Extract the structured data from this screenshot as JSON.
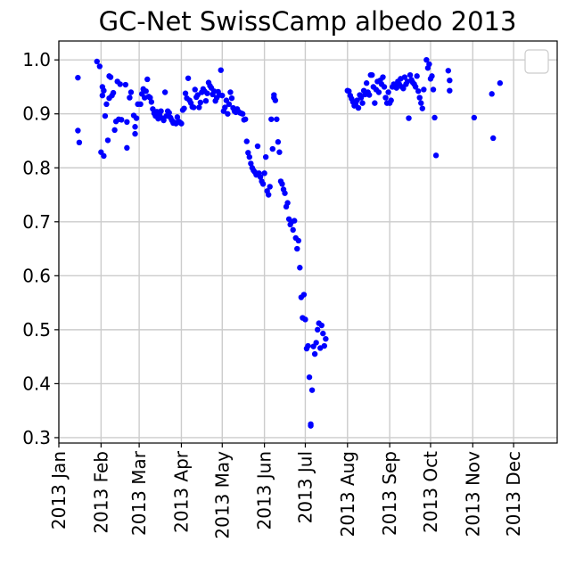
{
  "chart_data": {
    "type": "scatter",
    "title": "GC-Net SwissCamp albedo 2013",
    "xlabel": "",
    "ylabel": "",
    "x_axis": "date",
    "xlim": [
      "2013-01-01",
      "2014-01-02"
    ],
    "ylim": [
      0.29,
      1.035
    ],
    "grid": true,
    "legend": "top-right, empty",
    "marker_color": "#0000ff",
    "y_ticks": [
      {
        "value": 0.3,
        "label": "0.3"
      },
      {
        "value": 0.4,
        "label": "0.4"
      },
      {
        "value": 0.5,
        "label": "0.5"
      },
      {
        "value": 0.6,
        "label": "0.6"
      },
      {
        "value": 0.7,
        "label": "0.7"
      },
      {
        "value": 0.8,
        "label": "0.8"
      },
      {
        "value": 0.9,
        "label": "0.9"
      },
      {
        "value": 1.0,
        "label": "1.0"
      }
    ],
    "x_ticks": [
      {
        "date": "2013-01-01",
        "label": "2013 Jan"
      },
      {
        "date": "2013-02-01",
        "label": "2013 Feb"
      },
      {
        "date": "2013-03-01",
        "label": "2013 Mar"
      },
      {
        "date": "2013-04-01",
        "label": "2013 Apr"
      },
      {
        "date": "2013-05-01",
        "label": "2013 May"
      },
      {
        "date": "2013-06-01",
        "label": "2013 Jun"
      },
      {
        "date": "2013-07-01",
        "label": "2013 Jul"
      },
      {
        "date": "2013-08-01",
        "label": "2013 Aug"
      },
      {
        "date": "2013-09-01",
        "label": "2013 Sep"
      },
      {
        "date": "2013-10-01",
        "label": "2013 Oct"
      },
      {
        "date": "2013-11-01",
        "label": "2013 Nov"
      },
      {
        "date": "2013-12-01",
        "label": "2013 Dec"
      }
    ],
    "points": [
      [
        "2013-01-15",
        0.967
      ],
      [
        "2013-01-15",
        0.869
      ],
      [
        "2013-01-16",
        0.847
      ],
      [
        "2013-01-29",
        0.997
      ],
      [
        "2013-01-31",
        0.988
      ],
      [
        "2013-02-01",
        0.829
      ],
      [
        "2013-02-02",
        0.95
      ],
      [
        "2013-02-02",
        0.934
      ],
      [
        "2013-02-03",
        0.943
      ],
      [
        "2013-02-03",
        0.822
      ],
      [
        "2013-02-04",
        0.896
      ],
      [
        "2013-02-05",
        0.918
      ],
      [
        "2013-02-06",
        0.851
      ],
      [
        "2013-02-07",
        0.929
      ],
      [
        "2013-02-07",
        0.97
      ],
      [
        "2013-02-08",
        0.968
      ],
      [
        "2013-02-09",
        0.934
      ],
      [
        "2013-02-10",
        0.939
      ],
      [
        "2013-02-11",
        0.87
      ],
      [
        "2013-02-12",
        0.886
      ],
      [
        "2013-02-13",
        0.96
      ],
      [
        "2013-02-14",
        0.89
      ],
      [
        "2013-02-15",
        0.955
      ],
      [
        "2013-02-16",
        0.889
      ],
      [
        "2013-02-19",
        0.954
      ],
      [
        "2013-02-20",
        0.885
      ],
      [
        "2013-02-20",
        0.837
      ],
      [
        "2013-02-22",
        0.93
      ],
      [
        "2013-02-23",
        0.94
      ],
      [
        "2013-02-25",
        0.897
      ],
      [
        "2013-02-26",
        0.876
      ],
      [
        "2013-02-26",
        0.863
      ],
      [
        "2013-02-27",
        0.892
      ],
      [
        "2013-02-28",
        0.918
      ],
      [
        "2013-03-02",
        0.918
      ],
      [
        "2013-03-03",
        0.937
      ],
      [
        "2013-03-04",
        0.946
      ],
      [
        "2013-03-05",
        0.93
      ],
      [
        "2013-03-06",
        0.942
      ],
      [
        "2013-03-07",
        0.964
      ],
      [
        "2013-03-08",
        0.932
      ],
      [
        "2013-03-09",
        0.93
      ],
      [
        "2013-03-10",
        0.922
      ],
      [
        "2013-03-11",
        0.909
      ],
      [
        "2013-03-12",
        0.901
      ],
      [
        "2013-03-13",
        0.896
      ],
      [
        "2013-03-14",
        0.904
      ],
      [
        "2013-03-15",
        0.891
      ],
      [
        "2013-03-16",
        0.898
      ],
      [
        "2013-03-17",
        0.905
      ],
      [
        "2013-03-18",
        0.892
      ],
      [
        "2013-03-19",
        0.888
      ],
      [
        "2013-03-20",
        0.94
      ],
      [
        "2013-03-21",
        0.896
      ],
      [
        "2013-03-22",
        0.905
      ],
      [
        "2013-03-23",
        0.902
      ],
      [
        "2013-03-24",
        0.893
      ],
      [
        "2013-03-25",
        0.888
      ],
      [
        "2013-03-26",
        0.883
      ],
      [
        "2013-03-27",
        0.884
      ],
      [
        "2013-03-28",
        0.882
      ],
      [
        "2013-03-29",
        0.894
      ],
      [
        "2013-03-30",
        0.886
      ],
      [
        "2013-03-31",
        0.884
      ],
      [
        "2013-04-01",
        0.882
      ],
      [
        "2013-04-02",
        0.907
      ],
      [
        "2013-04-03",
        0.91
      ],
      [
        "2013-04-04",
        0.938
      ],
      [
        "2013-04-05",
        0.929
      ],
      [
        "2013-04-06",
        0.966
      ],
      [
        "2013-04-07",
        0.925
      ],
      [
        "2013-04-08",
        0.92
      ],
      [
        "2013-04-09",
        0.913
      ],
      [
        "2013-04-10",
        0.912
      ],
      [
        "2013-04-11",
        0.945
      ],
      [
        "2013-04-12",
        0.931
      ],
      [
        "2013-04-13",
        0.935
      ],
      [
        "2013-04-14",
        0.912
      ],
      [
        "2013-04-15",
        0.921
      ],
      [
        "2013-04-16",
        0.94
      ],
      [
        "2013-04-17",
        0.946
      ],
      [
        "2013-04-18",
        0.942
      ],
      [
        "2013-04-19",
        0.924
      ],
      [
        "2013-04-20",
        0.938
      ],
      [
        "2013-04-21",
        0.958
      ],
      [
        "2013-04-22",
        0.952
      ],
      [
        "2013-04-23",
        0.948
      ],
      [
        "2013-04-24",
        0.936
      ],
      [
        "2013-04-25",
        0.942
      ],
      [
        "2013-04-26",
        0.924
      ],
      [
        "2013-04-27",
        0.93
      ],
      [
        "2013-04-28",
        0.941
      ],
      [
        "2013-04-29",
        0.935
      ],
      [
        "2013-04-30",
        0.981
      ],
      [
        "2013-05-01",
        0.934
      ],
      [
        "2013-05-02",
        0.905
      ],
      [
        "2013-05-03",
        0.912
      ],
      [
        "2013-05-04",
        0.925
      ],
      [
        "2013-05-05",
        0.9
      ],
      [
        "2013-05-06",
        0.918
      ],
      [
        "2013-05-07",
        0.94
      ],
      [
        "2013-05-08",
        0.929
      ],
      [
        "2013-05-09",
        0.911
      ],
      [
        "2013-05-10",
        0.905
      ],
      [
        "2013-05-11",
        0.903
      ],
      [
        "2013-05-12",
        0.909
      ],
      [
        "2013-05-13",
        0.904
      ],
      [
        "2013-05-14",
        0.902
      ],
      [
        "2013-05-15",
        0.901
      ],
      [
        "2013-05-16",
        0.9
      ],
      [
        "2013-05-17",
        0.889
      ],
      [
        "2013-05-18",
        0.89
      ],
      [
        "2013-05-19",
        0.849
      ],
      [
        "2013-05-20",
        0.828
      ],
      [
        "2013-05-21",
        0.82
      ],
      [
        "2013-05-22",
        0.808
      ],
      [
        "2013-05-23",
        0.8
      ],
      [
        "2013-05-24",
        0.795
      ],
      [
        "2013-05-25",
        0.792
      ],
      [
        "2013-05-26",
        0.787
      ],
      [
        "2013-05-27",
        0.84
      ],
      [
        "2013-05-28",
        0.79
      ],
      [
        "2013-05-29",
        0.783
      ],
      [
        "2013-05-30",
        0.775
      ],
      [
        "2013-05-31",
        0.77
      ],
      [
        "2013-06-01",
        0.79
      ],
      [
        "2013-06-02",
        0.82
      ],
      [
        "2013-06-03",
        0.757
      ],
      [
        "2013-06-04",
        0.75
      ],
      [
        "2013-06-05",
        0.765
      ],
      [
        "2013-06-06",
        0.89
      ],
      [
        "2013-06-07",
        0.835
      ],
      [
        "2013-06-08",
        0.93
      ],
      [
        "2013-06-08",
        0.935
      ],
      [
        "2013-06-09",
        0.925
      ],
      [
        "2013-06-10",
        0.89
      ],
      [
        "2013-06-11",
        0.848
      ],
      [
        "2013-06-12",
        0.829
      ],
      [
        "2013-06-13",
        0.775
      ],
      [
        "2013-06-14",
        0.77
      ],
      [
        "2013-06-15",
        0.76
      ],
      [
        "2013-06-16",
        0.753
      ],
      [
        "2013-06-17",
        0.728
      ],
      [
        "2013-06-18",
        0.735
      ],
      [
        "2013-06-19",
        0.705
      ],
      [
        "2013-06-20",
        0.695
      ],
      [
        "2013-06-21",
        0.7
      ],
      [
        "2013-06-22",
        0.685
      ],
      [
        "2013-06-23",
        0.702
      ],
      [
        "2013-06-24",
        0.67
      ],
      [
        "2013-06-25",
        0.65
      ],
      [
        "2013-06-26",
        0.665
      ],
      [
        "2013-06-27",
        0.615
      ],
      [
        "2013-06-28",
        0.56
      ],
      [
        "2013-06-29",
        0.522
      ],
      [
        "2013-06-30",
        0.565
      ],
      [
        "2013-07-01",
        0.519
      ],
      [
        "2013-07-02",
        0.465
      ],
      [
        "2013-07-03",
        0.47
      ],
      [
        "2013-07-04",
        0.412
      ],
      [
        "2013-07-05",
        0.325
      ],
      [
        "2013-07-05",
        0.322
      ],
      [
        "2013-07-06",
        0.388
      ],
      [
        "2013-07-07",
        0.469
      ],
      [
        "2013-07-08",
        0.455
      ],
      [
        "2013-07-09",
        0.476
      ],
      [
        "2013-07-10",
        0.5
      ],
      [
        "2013-07-11",
        0.512
      ],
      [
        "2013-07-12",
        0.466
      ],
      [
        "2013-07-13",
        0.508
      ],
      [
        "2013-07-14",
        0.493
      ],
      [
        "2013-07-15",
        0.47
      ],
      [
        "2013-07-16",
        0.483
      ],
      [
        "2013-08-01",
        0.943
      ],
      [
        "2013-08-02",
        0.942
      ],
      [
        "2013-08-03",
        0.934
      ],
      [
        "2013-08-04",
        0.928
      ],
      [
        "2013-08-05",
        0.922
      ],
      [
        "2013-08-06",
        0.915
      ],
      [
        "2013-08-07",
        0.918
      ],
      [
        "2013-08-08",
        0.925
      ],
      [
        "2013-08-09",
        0.911
      ],
      [
        "2013-08-10",
        0.935
      ],
      [
        "2013-08-11",
        0.93
      ],
      [
        "2013-08-12",
        0.92
      ],
      [
        "2013-08-13",
        0.943
      ],
      [
        "2013-08-14",
        0.936
      ],
      [
        "2013-08-15",
        0.957
      ],
      [
        "2013-08-16",
        0.94
      ],
      [
        "2013-08-17",
        0.935
      ],
      [
        "2013-08-18",
        0.972
      ],
      [
        "2013-08-19",
        0.972
      ],
      [
        "2013-08-20",
        0.95
      ],
      [
        "2013-08-21",
        0.92
      ],
      [
        "2013-08-22",
        0.945
      ],
      [
        "2013-08-23",
        0.96
      ],
      [
        "2013-08-24",
        0.94
      ],
      [
        "2013-08-25",
        0.962
      ],
      [
        "2013-08-26",
        0.955
      ],
      [
        "2013-08-27",
        0.968
      ],
      [
        "2013-08-28",
        0.95
      ],
      [
        "2013-08-29",
        0.93
      ],
      [
        "2013-08-30",
        0.92
      ],
      [
        "2013-08-31",
        0.94
      ],
      [
        "2013-09-01",
        0.92
      ],
      [
        "2013-09-02",
        0.925
      ],
      [
        "2013-09-03",
        0.95
      ],
      [
        "2013-09-04",
        0.955
      ],
      [
        "2013-09-05",
        0.953
      ],
      [
        "2013-09-06",
        0.948
      ],
      [
        "2013-09-07",
        0.96
      ],
      [
        "2013-09-08",
        0.955
      ],
      [
        "2013-09-09",
        0.965
      ],
      [
        "2013-09-10",
        0.95
      ],
      [
        "2013-09-11",
        0.947
      ],
      [
        "2013-09-12",
        0.968
      ],
      [
        "2013-09-13",
        0.955
      ],
      [
        "2013-09-14",
        0.96
      ],
      [
        "2013-09-15",
        0.892
      ],
      [
        "2013-09-16",
        0.972
      ],
      [
        "2013-09-17",
        0.963
      ],
      [
        "2013-09-18",
        0.958
      ],
      [
        "2013-09-19",
        0.955
      ],
      [
        "2013-09-20",
        0.95
      ],
      [
        "2013-09-21",
        0.97
      ],
      [
        "2013-09-22",
        0.942
      ],
      [
        "2013-09-23",
        0.93
      ],
      [
        "2013-09-24",
        0.92
      ],
      [
        "2013-09-25",
        0.91
      ],
      [
        "2013-09-26",
        0.945
      ],
      [
        "2013-09-28",
        1.0
      ],
      [
        "2013-09-29",
        0.985
      ],
      [
        "2013-09-30",
        0.992
      ],
      [
        "2013-10-01",
        0.965
      ],
      [
        "2013-10-02",
        0.97
      ],
      [
        "2013-10-03",
        0.945
      ],
      [
        "2013-10-04",
        0.893
      ],
      [
        "2013-10-05",
        0.823
      ],
      [
        "2013-10-14",
        0.98
      ],
      [
        "2013-10-15",
        0.962
      ],
      [
        "2013-10-15",
        0.943
      ],
      [
        "2013-11-02",
        0.893
      ],
      [
        "2013-11-15",
        0.937
      ],
      [
        "2013-11-16",
        0.855
      ],
      [
        "2013-11-21",
        0.957
      ]
    ]
  }
}
